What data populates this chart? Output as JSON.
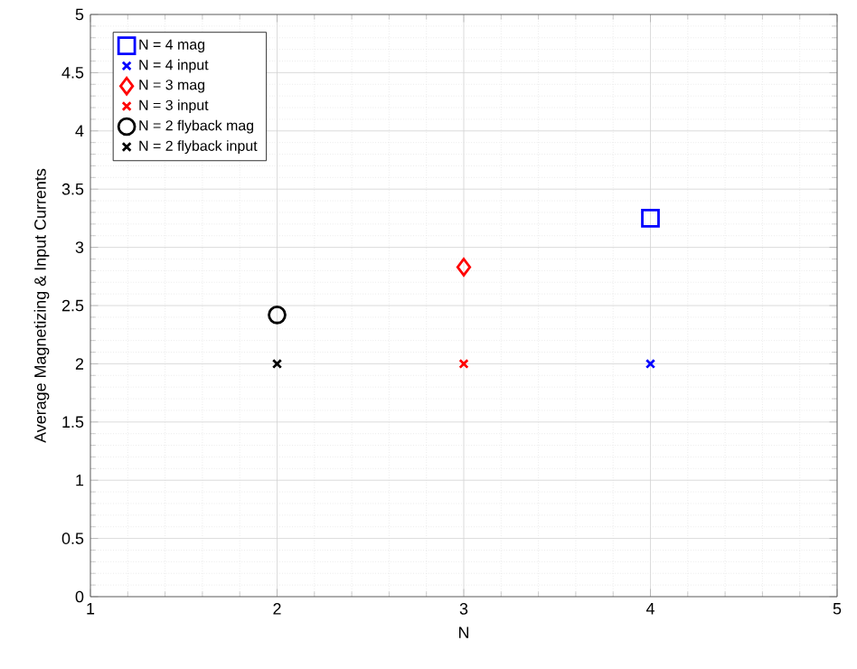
{
  "chart_data": {
    "type": "scatter",
    "xlabel": "N",
    "ylabel": "Average Magnetizing & Input Currents",
    "xlim": [
      1,
      5
    ],
    "ylim": [
      0,
      5
    ],
    "xticks": [
      1,
      2,
      3,
      4,
      5
    ],
    "yticks": [
      0,
      0.5,
      1,
      1.5,
      2,
      2.5,
      3,
      3.5,
      4,
      4.5,
      5
    ],
    "grid": true,
    "legend": "top left",
    "series": [
      {
        "name": "N = 4 mag",
        "color": "#0000ff",
        "marker": "square",
        "x": [
          4
        ],
        "values": [
          3.25
        ]
      },
      {
        "name": "N = 4 input",
        "color": "#0000ff",
        "marker": "cross",
        "x": [
          4
        ],
        "values": [
          2
        ]
      },
      {
        "name": "N = 3 mag",
        "color": "#ff0000",
        "marker": "diamond",
        "x": [
          3
        ],
        "values": [
          2.83
        ]
      },
      {
        "name": "N = 3 input",
        "color": "#ff0000",
        "marker": "cross",
        "x": [
          3
        ],
        "values": [
          2
        ]
      },
      {
        "name": "N = 2 flyback mag",
        "color": "#000000",
        "marker": "circle",
        "x": [
          2
        ],
        "values": [
          2.42
        ]
      },
      {
        "name": "N = 2 flyback input",
        "color": "#000000",
        "marker": "cross",
        "x": [
          2
        ],
        "values": [
          2
        ]
      }
    ]
  }
}
